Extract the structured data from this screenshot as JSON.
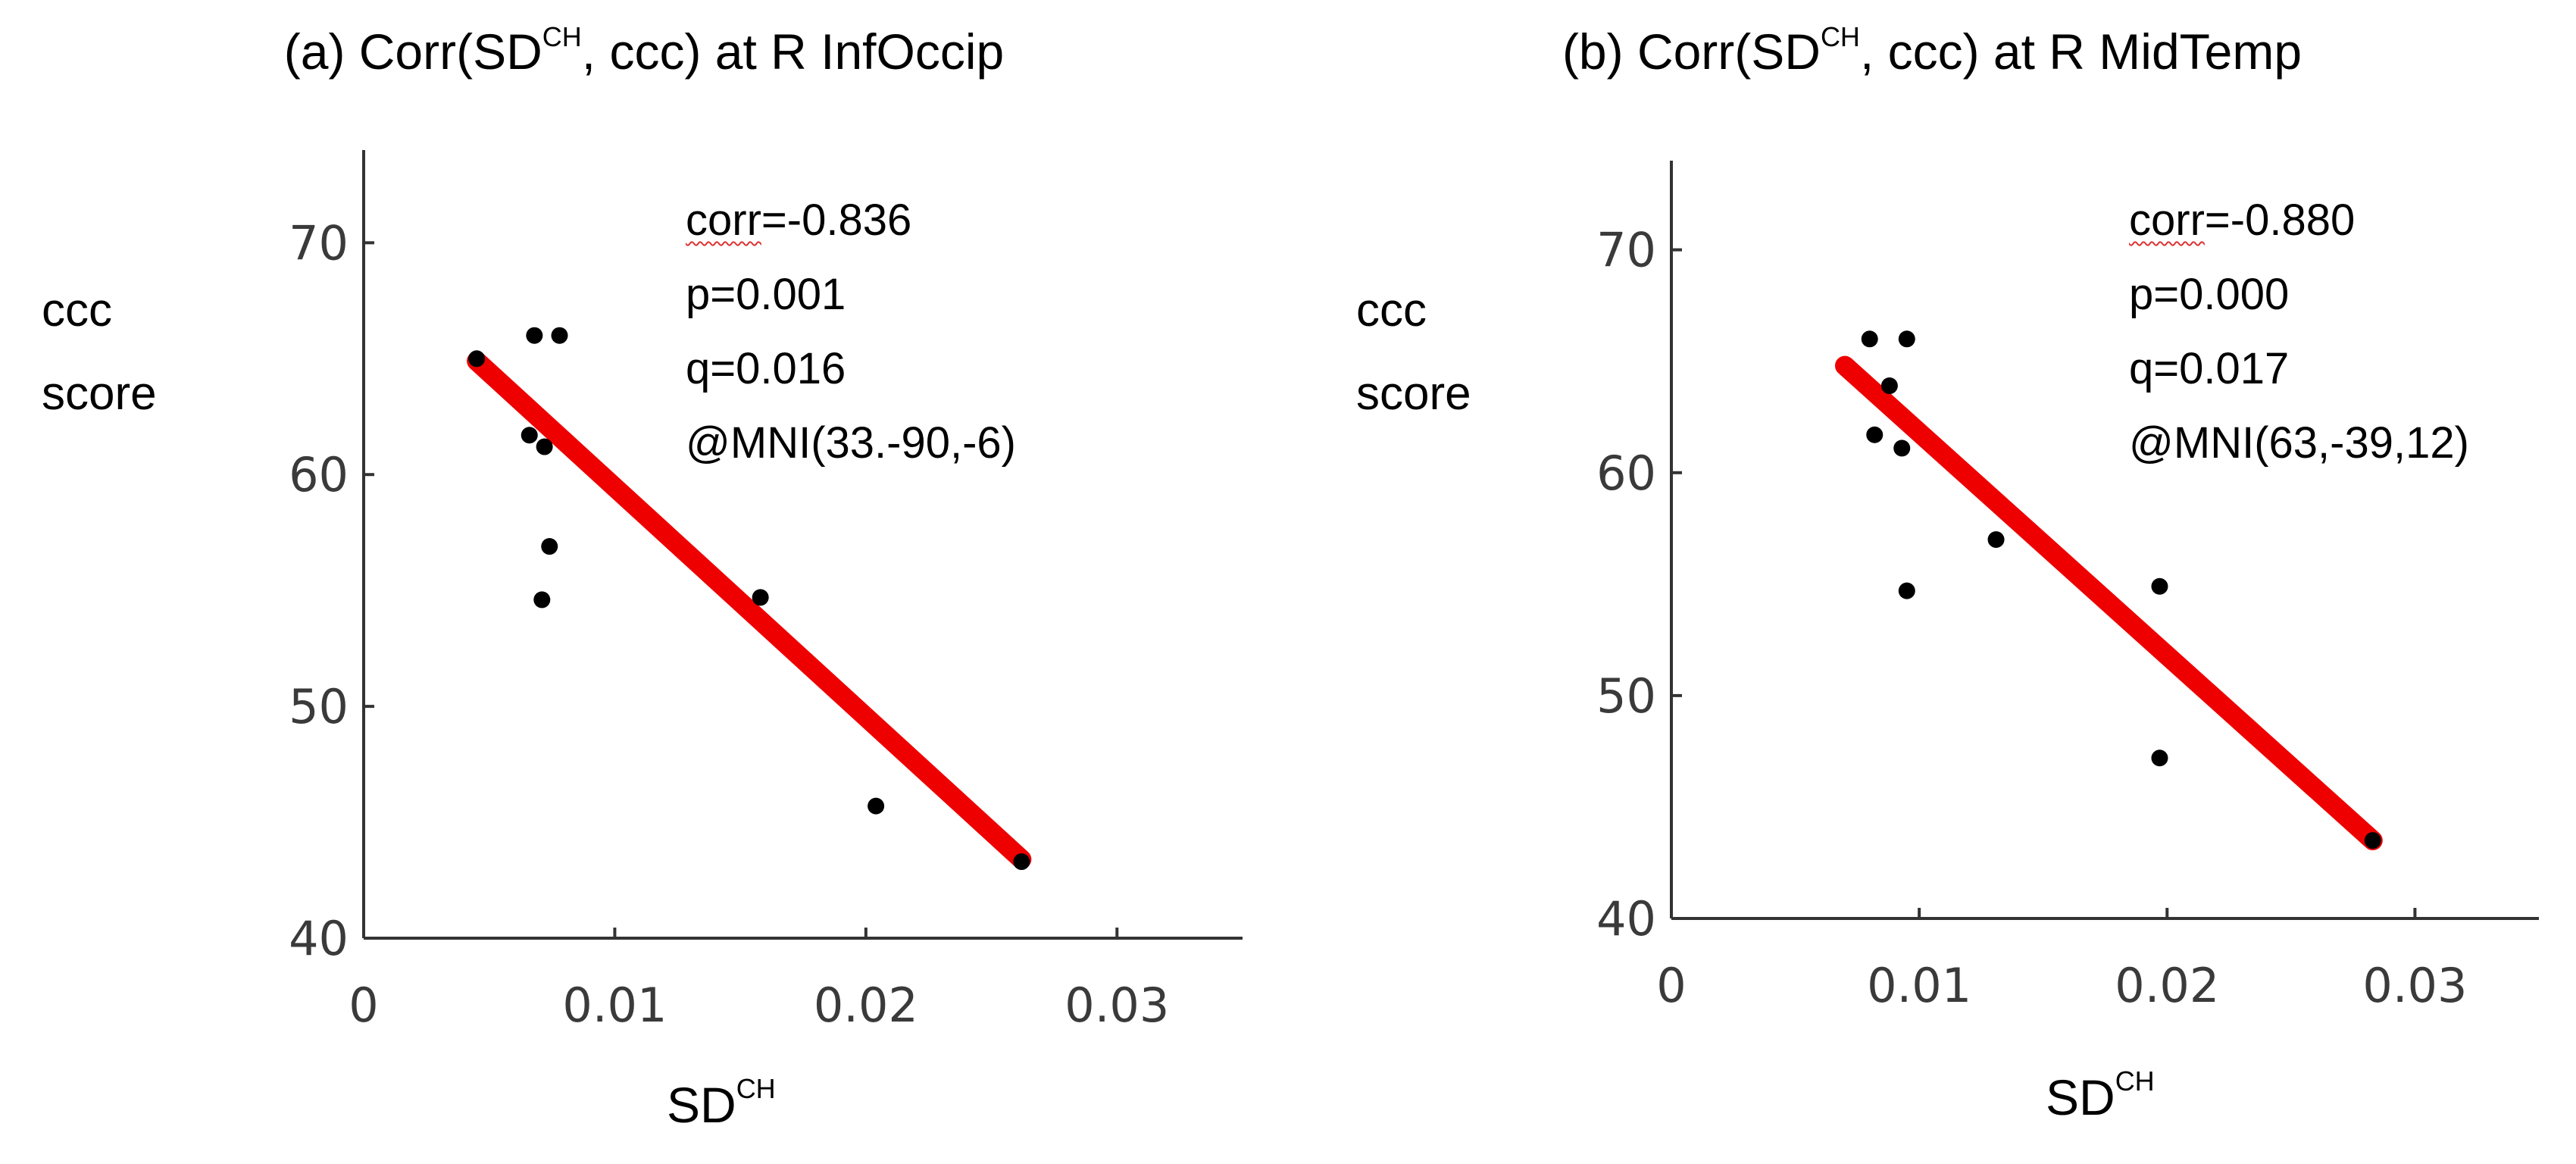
{
  "chart_data": [
    {
      "type": "scatter",
      "title_main": "(a) Corr(SD",
      "title_sup": "CH",
      "title_rest": ", ccc)  at R InfOccip",
      "xlabel": "SD",
      "xlabel_sup": "CH",
      "ylabel_line1": "ccc",
      "ylabel_line2": "score",
      "xlim": [
        0,
        0.035
      ],
      "ylim": [
        40,
        74
      ],
      "xticks": [
        0,
        0.01,
        0.02,
        0.03
      ],
      "xtick_labels": [
        "0",
        "0.01",
        "0.02",
        "0.03"
      ],
      "yticks": [
        40,
        50,
        60,
        70
      ],
      "ytick_labels": [
        "40",
        "50",
        "60",
        "70"
      ],
      "points": [
        {
          "x": 0.0045,
          "y": 65.0
        },
        {
          "x": 0.0068,
          "y": 66.0
        },
        {
          "x": 0.0078,
          "y": 66.0
        },
        {
          "x": 0.0066,
          "y": 61.7
        },
        {
          "x": 0.0072,
          "y": 61.2
        },
        {
          "x": 0.0074,
          "y": 56.9
        },
        {
          "x": 0.0071,
          "y": 54.6
        },
        {
          "x": 0.0158,
          "y": 54.7
        },
        {
          "x": 0.0204,
          "y": 45.7
        },
        {
          "x": 0.0262,
          "y": 43.3
        }
      ],
      "fit_line": {
        "x1": 0.0045,
        "y1": 64.9,
        "x2": 0.0262,
        "y2": 43.4,
        "color": "#ee0000"
      },
      "stats": {
        "corr_prefix": "corr",
        "corr_value": "=-0.836",
        "p": "p=0.001",
        "q": "q=0.016",
        "mni": "@MNI(33.-90,-6)"
      }
    },
    {
      "type": "scatter",
      "title_main": "(b) Corr(SD",
      "title_sup": "CH",
      "title_rest": ", ccc) at R MidTemp",
      "xlabel": "SD",
      "xlabel_sup": "CH",
      "ylabel_line1": "ccc",
      "ylabel_line2": "score",
      "xlim": [
        0,
        0.035
      ],
      "ylim": [
        40,
        74
      ],
      "xticks": [
        0,
        0.01,
        0.02,
        0.03
      ],
      "xtick_labels": [
        "0",
        "0.01",
        "0.02",
        "0.03"
      ],
      "yticks": [
        40,
        50,
        60,
        70
      ],
      "ytick_labels": [
        "40",
        "50",
        "60",
        "70"
      ],
      "points": [
        {
          "x": 0.008,
          "y": 66.0
        },
        {
          "x": 0.0095,
          "y": 66.0
        },
        {
          "x": 0.0088,
          "y": 63.9
        },
        {
          "x": 0.0082,
          "y": 61.7
        },
        {
          "x": 0.0093,
          "y": 61.1
        },
        {
          "x": 0.0095,
          "y": 54.7
        },
        {
          "x": 0.0131,
          "y": 57.0
        },
        {
          "x": 0.0197,
          "y": 54.9
        },
        {
          "x": 0.0197,
          "y": 47.2
        },
        {
          "x": 0.0283,
          "y": 43.5
        }
      ],
      "fit_line": {
        "x1": 0.007,
        "y1": 64.8,
        "x2": 0.0283,
        "y2": 43.5,
        "color": "#ee0000"
      },
      "stats": {
        "corr_prefix": "corr",
        "corr_value": "=-0.880",
        "p": "p=0.000",
        "q": "q=0.017",
        "mni": "@MNI(63,-39,12)"
      }
    }
  ]
}
